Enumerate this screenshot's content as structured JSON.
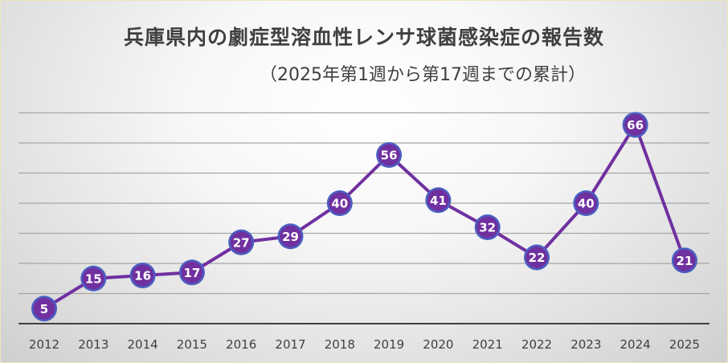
{
  "chart_data": {
    "type": "line",
    "title": "兵庫県内の劇症型溶血性レンサ球菌感染症の報告数",
    "subtitle": "（2025年第1週から第17週までの累計）",
    "categories": [
      "2012",
      "2013",
      "2014",
      "2015",
      "2016",
      "2017",
      "2018",
      "2019",
      "2020",
      "2021",
      "2022",
      "2023",
      "2024",
      "2025"
    ],
    "values": [
      5,
      15,
      16,
      17,
      27,
      29,
      40,
      56,
      41,
      32,
      22,
      40,
      66,
      21
    ],
    "xlabel": "",
    "ylabel": "",
    "ylim": [
      0,
      70
    ],
    "grid": true,
    "legend": "none",
    "colors": {
      "line": "#7030a0",
      "marker_fill": "#7030a0",
      "marker_edge": "#4a5fc1",
      "label_text": "#ffffff",
      "grid": "#a6a6a6",
      "axis": "#404040"
    }
  }
}
